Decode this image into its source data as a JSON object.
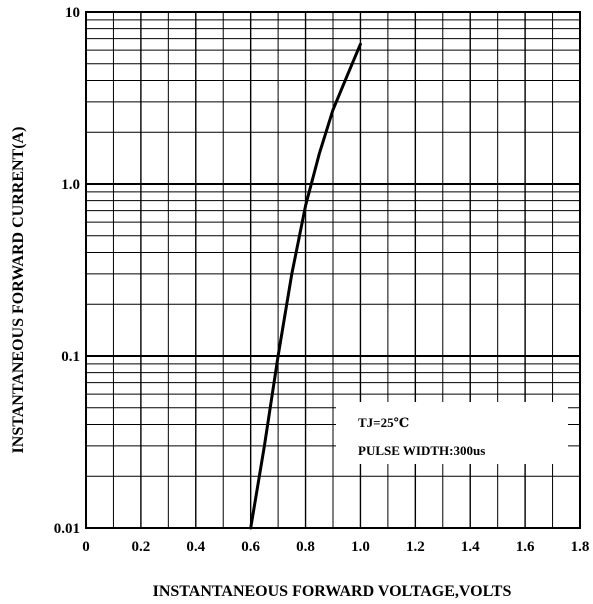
{
  "chart_data": {
    "type": "line",
    "title": "",
    "xlabel": "INSTANTANEOUS FORWARD VOLTAGE,VOLTS",
    "ylabel": "INSTANTANEOUS FORWARD CURRENT(A)",
    "xlim": [
      0,
      1.8
    ],
    "ylim": [
      0.01,
      10
    ],
    "y_scale": "log",
    "grid": true,
    "x_ticks": [
      "0",
      "0.2",
      "0.4",
      "0.6",
      "0.8",
      "1.0",
      "1.2",
      "1.4",
      "1.6",
      "1.8"
    ],
    "y_ticks": [
      "0.01",
      "0.1",
      "1.0",
      "10"
    ],
    "series": [
      {
        "x": [
          0.6,
          0.65,
          0.7,
          0.75,
          0.8,
          0.85,
          0.9,
          0.95,
          1.0
        ],
        "y": [
          0.01,
          0.03,
          0.1,
          0.3,
          0.75,
          1.5,
          2.7,
          4.2,
          6.5
        ]
      }
    ],
    "annotations": [
      "TJ=25℃",
      "PULSE WIDTH:300us"
    ]
  },
  "colors": {
    "line": "#000000",
    "grid": "#000000",
    "background": "#ffffff"
  }
}
